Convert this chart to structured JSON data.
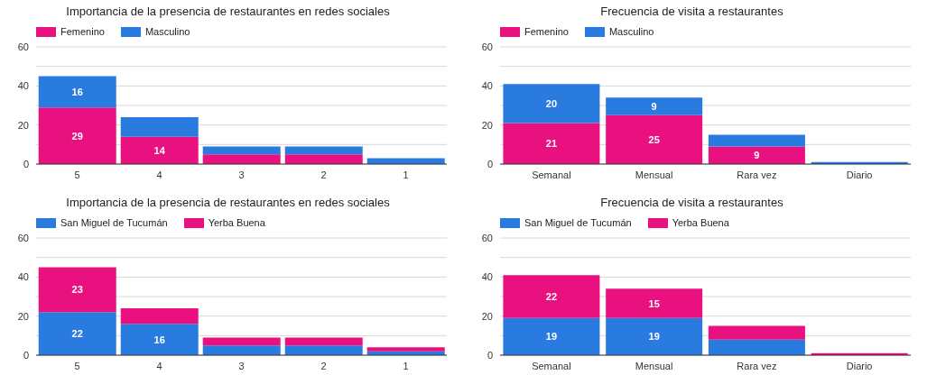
{
  "chart_data": [
    {
      "type": "bar",
      "title": "Importancia de la presencia de restaurantes en redes sociales",
      "categories": [
        "5",
        "4",
        "3",
        "2",
        "1"
      ],
      "stacked": true,
      "ylim": [
        0,
        60
      ],
      "yticks": [
        0,
        {
          "value": 10,
          "label": null
        },
        20,
        {
          "value": 30,
          "label": null
        },
        40,
        {
          "value": 50,
          "label": null
        },
        60
      ],
      "grid": "y",
      "legend": "top left",
      "series": [
        {
          "name": "Femenino",
          "color": "#e8117f",
          "values": [
            29,
            14,
            5,
            5,
            null
          ],
          "value_labels": [
            "29",
            "14",
            null,
            null,
            null
          ]
        },
        {
          "name": "Masculino",
          "color": "#2a7be0",
          "values": [
            16,
            10,
            4,
            4,
            3
          ],
          "value_labels": [
            "16",
            null,
            null,
            null,
            null
          ]
        }
      ]
    },
    {
      "type": "bar",
      "title": "Frecuencia de visita a restaurantes",
      "categories": [
        "Semanal",
        "Mensual",
        "Rara vez",
        "Diario"
      ],
      "stacked": true,
      "ylim": [
        0,
        60
      ],
      "yticks": [
        0,
        {
          "value": 10,
          "label": null
        },
        20,
        {
          "value": 30,
          "label": null
        },
        40,
        {
          "value": 50,
          "label": null
        },
        60
      ],
      "grid": "y",
      "legend": "top left",
      "series": [
        {
          "name": "Femenino",
          "color": "#e8117f",
          "values": [
            21,
            25,
            9,
            null
          ],
          "value_labels": [
            "21",
            "25",
            "9",
            null
          ]
        },
        {
          "name": "Masculino",
          "color": "#2a7be0",
          "values": [
            20,
            9,
            6,
            1
          ],
          "value_labels": [
            "20",
            "9",
            null,
            null
          ]
        }
      ]
    },
    {
      "type": "bar",
      "title": "Importancia de la presencia de restaurantes en redes sociales",
      "categories": [
        "5",
        "4",
        "3",
        "2",
        "1"
      ],
      "stacked": true,
      "ylim": [
        0,
        60
      ],
      "yticks": [
        0,
        {
          "value": 10,
          "label": null
        },
        20,
        {
          "value": 30,
          "label": null
        },
        40,
        {
          "value": 50,
          "label": null
        },
        60
      ],
      "grid": "y",
      "legend": "top left",
      "series": [
        {
          "name": "San Miguel de Tucumán",
          "color": "#2a7be0",
          "values": [
            22,
            16,
            5,
            5,
            2
          ],
          "value_labels": [
            "22",
            "16",
            null,
            null,
            null
          ]
        },
        {
          "name": "Yerba Buena",
          "color": "#e8117f",
          "values": [
            23,
            8,
            4,
            4,
            2
          ],
          "value_labels": [
            "23",
            null,
            null,
            null,
            null
          ]
        }
      ]
    },
    {
      "type": "bar",
      "title": "Frecuencia de visita a restaurantes",
      "categories": [
        "Semanal",
        "Mensual",
        "Rara vez",
        "Diario"
      ],
      "stacked": true,
      "ylim": [
        0,
        60
      ],
      "yticks": [
        0,
        {
          "value": 10,
          "label": null
        },
        20,
        {
          "value": 30,
          "label": null
        },
        40,
        {
          "value": 50,
          "label": null
        },
        60
      ],
      "grid": "y",
      "legend": "top left",
      "series": [
        {
          "name": "San Miguel de Tucumán",
          "color": "#2a7be0",
          "values": [
            19,
            19,
            8,
            null
          ],
          "value_labels": [
            "19",
            "19",
            null,
            null
          ]
        },
        {
          "name": "Yerba Buena",
          "color": "#e8117f",
          "values": [
            22,
            15,
            7,
            1
          ],
          "value_labels": [
            "22",
            "15",
            null,
            null
          ]
        }
      ]
    }
  ]
}
